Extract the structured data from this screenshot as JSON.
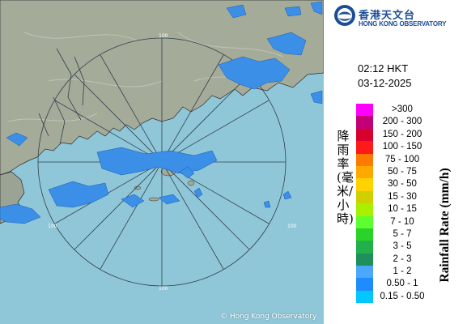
{
  "map": {
    "range_ring_labels": [
      "100",
      "100",
      "100",
      "100"
    ],
    "copyright": "© Hong Kong Observatory",
    "colors": {
      "sea": "#8fc7d8",
      "land": "#a3ab9a",
      "rings": "#33404d",
      "rain": "#3b8fe6"
    }
  },
  "panel": {
    "logo": {
      "zh": "香港天文台",
      "en": "HONG KONG OBSERVATORY"
    },
    "time": "02:12 HKT",
    "date": "03-12-2025",
    "unit_zh": "降雨率(毫米/小時)",
    "unit_en": "Rainfall Rate (mm/h)",
    "legend": [
      {
        "label": ">300",
        "color": "#ff00ff"
      },
      {
        "label": "200 - 300",
        "color": "#c20078"
      },
      {
        "label": "150 - 200",
        "color": "#d8002c"
      },
      {
        "label": "100 - 150",
        "color": "#ff1a1a"
      },
      {
        "label": "75 - 100",
        "color": "#ff7a00"
      },
      {
        "label": "50 - 75",
        "color": "#ffa800"
      },
      {
        "label": "30 - 50",
        "color": "#ffd200"
      },
      {
        "label": "15 - 30",
        "color": "#cfd000"
      },
      {
        "label": "10 - 15",
        "color": "#a6f000"
      },
      {
        "label": "7 - 10",
        "color": "#5eff2e"
      },
      {
        "label": "5 - 7",
        "color": "#2ad32a"
      },
      {
        "label": "3 - 5",
        "color": "#22b04a"
      },
      {
        "label": "2 - 3",
        "color": "#1f8f5c"
      },
      {
        "label": "1 - 2",
        "color": "#4aa8ff"
      },
      {
        "label": "0.50 - 1",
        "color": "#1e8cff"
      },
      {
        "label": "0.15 - 0.50",
        "color": "#00c8ff"
      }
    ]
  }
}
